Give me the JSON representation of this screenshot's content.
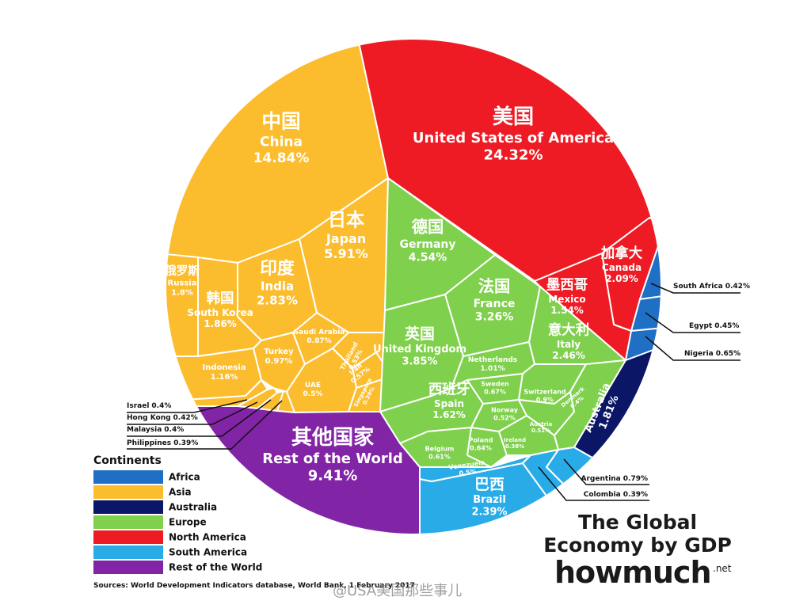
{
  "chart_data": {
    "type": "voronoi-treemap",
    "title": [
      "The Global",
      "Economy by GDP"
    ],
    "brand": "howmuch",
    "brand_suffix": ".net",
    "source": "Sources: World Development Indicators database, World Bank, 1 February 2017",
    "watermark": "@USA美国那些事儿",
    "legend_title": "Continents",
    "continents": [
      {
        "name": "Africa",
        "color": "#1f6fc5"
      },
      {
        "name": "Asia",
        "color": "#fbbd2e"
      },
      {
        "name": "Australia",
        "color": "#0b1766"
      },
      {
        "name": "Europe",
        "color": "#7fd04c"
      },
      {
        "name": "North America",
        "color": "#ee1b24"
      },
      {
        "name": "South America",
        "color": "#29abe8"
      },
      {
        "name": "Rest of the World",
        "color": "#8224a6"
      }
    ],
    "cells": [
      {
        "local": "中国",
        "name": "China",
        "value": 14.84,
        "value_label": "14.84%",
        "continent": "Asia"
      },
      {
        "local": "日本",
        "name": "Japan",
        "value": 5.91,
        "value_label": "5.91%",
        "continent": "Asia"
      },
      {
        "local": "印度",
        "name": "India",
        "value": 2.83,
        "value_label": "2.83%",
        "continent": "Asia"
      },
      {
        "local": "俄罗斯",
        "name": "Russia",
        "value": 1.8,
        "value_label": "1.8%",
        "continent": "Asia"
      },
      {
        "local": "韩国",
        "name": "South Korea",
        "value": 1.86,
        "value_label": "1.86%",
        "continent": "Asia"
      },
      {
        "name": "Indonesia",
        "value": 1.16,
        "value_label": "1.16%",
        "continent": "Asia"
      },
      {
        "name": "Turkey",
        "value": 0.97,
        "value_label": "0.97%",
        "continent": "Asia"
      },
      {
        "name": "Saudi Arabia",
        "value": 0.87,
        "value_label": "0.87%",
        "continent": "Asia"
      },
      {
        "name": "Thailand",
        "value": 0.53,
        "value_label": "0.53%",
        "continent": "Asia"
      },
      {
        "name": "Iran",
        "value": 0.57,
        "value_label": "0.57%",
        "continent": "Asia"
      },
      {
        "name": "UAE",
        "value": 0.5,
        "value_label": "0.5%",
        "continent": "Asia"
      },
      {
        "name": "Singapore",
        "value": 0.39,
        "value_label": "0.39%",
        "continent": "Asia"
      },
      {
        "name": "Israel",
        "value": 0.4,
        "value_label": "0.4%",
        "continent": "Asia"
      },
      {
        "name": "Hong Kong",
        "value": 0.42,
        "value_label": "0.42%",
        "continent": "Asia"
      },
      {
        "name": "Malaysia",
        "value": 0.4,
        "value_label": "0.4%",
        "continent": "Asia"
      },
      {
        "name": "Philippines",
        "value": 0.39,
        "value_label": "0.39%",
        "continent": "Asia"
      },
      {
        "local": "美国",
        "name": "United States of America",
        "value": 24.32,
        "value_label": "24.32%",
        "continent": "North America"
      },
      {
        "local": "加拿大",
        "name": "Canada",
        "value": 2.09,
        "value_label": "2.09%",
        "continent": "North America"
      },
      {
        "local": "墨西哥",
        "name": "Mexico",
        "value": 1.54,
        "value_label": "1.54%",
        "continent": "North America"
      },
      {
        "local": "德国",
        "name": "Germany",
        "value": 4.54,
        "value_label": "4.54%",
        "continent": "Europe"
      },
      {
        "local": "法国",
        "name": "France",
        "value": 3.26,
        "value_label": "3.26%",
        "continent": "Europe"
      },
      {
        "local": "英国",
        "name": "United Kingdom",
        "value": 3.85,
        "value_label": "3.85%",
        "continent": "Europe"
      },
      {
        "local": "意大利",
        "name": "Italy",
        "value": 2.46,
        "value_label": "2.46%",
        "continent": "Europe"
      },
      {
        "local": "西班牙",
        "name": "Spain",
        "value": 1.62,
        "value_label": "1.62%",
        "continent": "Europe"
      },
      {
        "name": "Netherlands",
        "value": 1.01,
        "value_label": "1.01%",
        "continent": "Europe"
      },
      {
        "name": "Sweden",
        "value": 0.67,
        "value_label": "0.67%",
        "continent": "Europe"
      },
      {
        "name": "Switzerland",
        "value": 0.9,
        "value_label": "0.9%",
        "continent": "Europe"
      },
      {
        "name": "Norway",
        "value": 0.52,
        "value_label": "0.52%",
        "continent": "Europe"
      },
      {
        "name": "Poland",
        "value": 0.64,
        "value_label": "0.64%",
        "continent": "Europe"
      },
      {
        "name": "Belgium",
        "value": 0.61,
        "value_label": "0.61%",
        "continent": "Europe"
      },
      {
        "name": "Austria",
        "value": 0.51,
        "value_label": "0.51%",
        "continent": "Europe"
      },
      {
        "name": "Ireland",
        "value": 0.38,
        "value_label": "0.38%",
        "continent": "Europe"
      },
      {
        "name": "Denmark",
        "value": 0.4,
        "value_label": "0.4%",
        "continent": "Europe"
      },
      {
        "name": "Australia",
        "value": 1.81,
        "value_label": "1.81%",
        "continent": "Australia"
      },
      {
        "local": "巴西",
        "name": "Brazil",
        "value": 2.39,
        "value_label": "2.39%",
        "continent": "South America"
      },
      {
        "name": "Venezuela",
        "value": 0.5,
        "value_label": "0.5%",
        "continent": "South America"
      },
      {
        "name": "Argentina",
        "value": 0.79,
        "value_label": "0.79%",
        "continent": "South America"
      },
      {
        "name": "Colombia",
        "value": 0.39,
        "value_label": "0.39%",
        "continent": "South America"
      },
      {
        "name": "South Africa",
        "value": 0.42,
        "value_label": "0.42%",
        "continent": "Africa"
      },
      {
        "name": "Egypt",
        "value": 0.45,
        "value_label": "0.45%",
        "continent": "Africa"
      },
      {
        "name": "Nigeria",
        "value": 0.65,
        "value_label": "0.65%",
        "continent": "Africa"
      },
      {
        "local": "其他国家",
        "name": "Rest of the World",
        "value": 9.41,
        "value_label": "9.41%",
        "continent": "Rest of the World"
      }
    ]
  }
}
